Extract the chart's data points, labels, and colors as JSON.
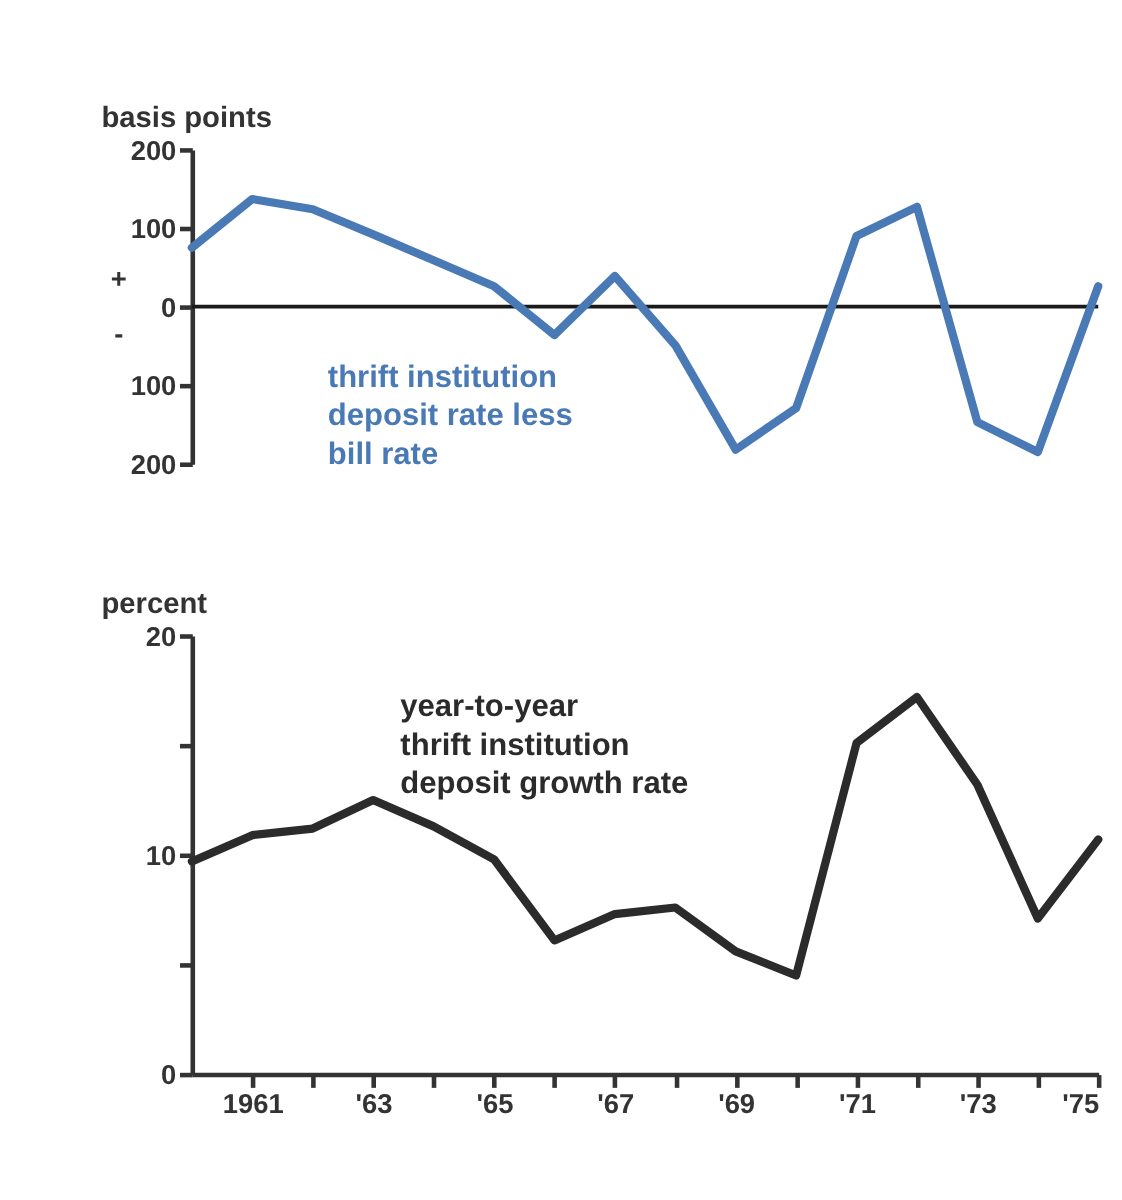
{
  "chart_data": [
    {
      "type": "line",
      "ylabel": "basis points",
      "x": [
        1960,
        1961,
        1962,
        1963,
        1964,
        1965,
        1966,
        1967,
        1968,
        1969,
        1970,
        1971,
        1972,
        1973,
        1974,
        1975
      ],
      "series": [
        {
          "name": "thrift institution deposit rate less bill rate",
          "color": "#4a7ab5",
          "values": [
            75,
            137,
            124,
            92,
            59,
            26,
            -36,
            39,
            -49,
            -182,
            -129,
            90,
            127,
            -147,
            -185,
            26
          ]
        }
      ],
      "xlim": [
        1960,
        1975
      ],
      "ylim": [
        -200,
        200
      ],
      "yticks": [
        {
          "value": -200,
          "label": "200"
        },
        {
          "value": -100,
          "label": "100"
        },
        0,
        100,
        200
      ],
      "ref_lines": [
        {
          "axis": "y",
          "value": 0,
          "color": "#1a1a1a"
        }
      ],
      "annotations": [
        "+",
        "-"
      ],
      "tick_labels": "y",
      "grid": false,
      "legend": false,
      "marker": "none",
      "line_style": "solid"
    },
    {
      "type": "line",
      "ylabel": "percent",
      "x": [
        1960,
        1961,
        1962,
        1963,
        1964,
        1965,
        1966,
        1967,
        1968,
        1969,
        1970,
        1971,
        1972,
        1973,
        1974,
        1975
      ],
      "series": [
        {
          "name": "year-to-year thrift institution deposit growth rate",
          "color": "#2b2b2b",
          "values": [
            9.7,
            10.9,
            11.2,
            12.5,
            11.3,
            9.8,
            6.1,
            7.3,
            7.6,
            5.6,
            4.5,
            15.1,
            17.2,
            13.2,
            7.1,
            10.7
          ]
        }
      ],
      "xlim": [
        1960,
        1975
      ],
      "ylim": [
        0,
        20
      ],
      "xticks": [
        {
          "value": 1961,
          "label": "1961"
        },
        {
          "value": 1962,
          "label": null
        },
        {
          "value": 1963,
          "label": "'63"
        },
        {
          "value": 1964,
          "label": null
        },
        {
          "value": 1965,
          "label": "'65"
        },
        {
          "value": 1966,
          "label": null
        },
        {
          "value": 1967,
          "label": "'67"
        },
        {
          "value": 1968,
          "label": null
        },
        {
          "value": 1969,
          "label": "'69"
        },
        {
          "value": 1970,
          "label": null
        },
        {
          "value": 1971,
          "label": "'71"
        },
        {
          "value": 1972,
          "label": null
        },
        {
          "value": 1973,
          "label": "'73"
        },
        {
          "value": 1974,
          "label": null
        },
        {
          "value": 1975,
          "label": "'75"
        }
      ],
      "yticks": [
        0,
        {
          "value": 5,
          "label": null
        },
        10,
        {
          "value": 15,
          "label": null
        },
        20
      ],
      "grid": false,
      "legend": false,
      "marker": "none",
      "line_style": "solid"
    }
  ]
}
